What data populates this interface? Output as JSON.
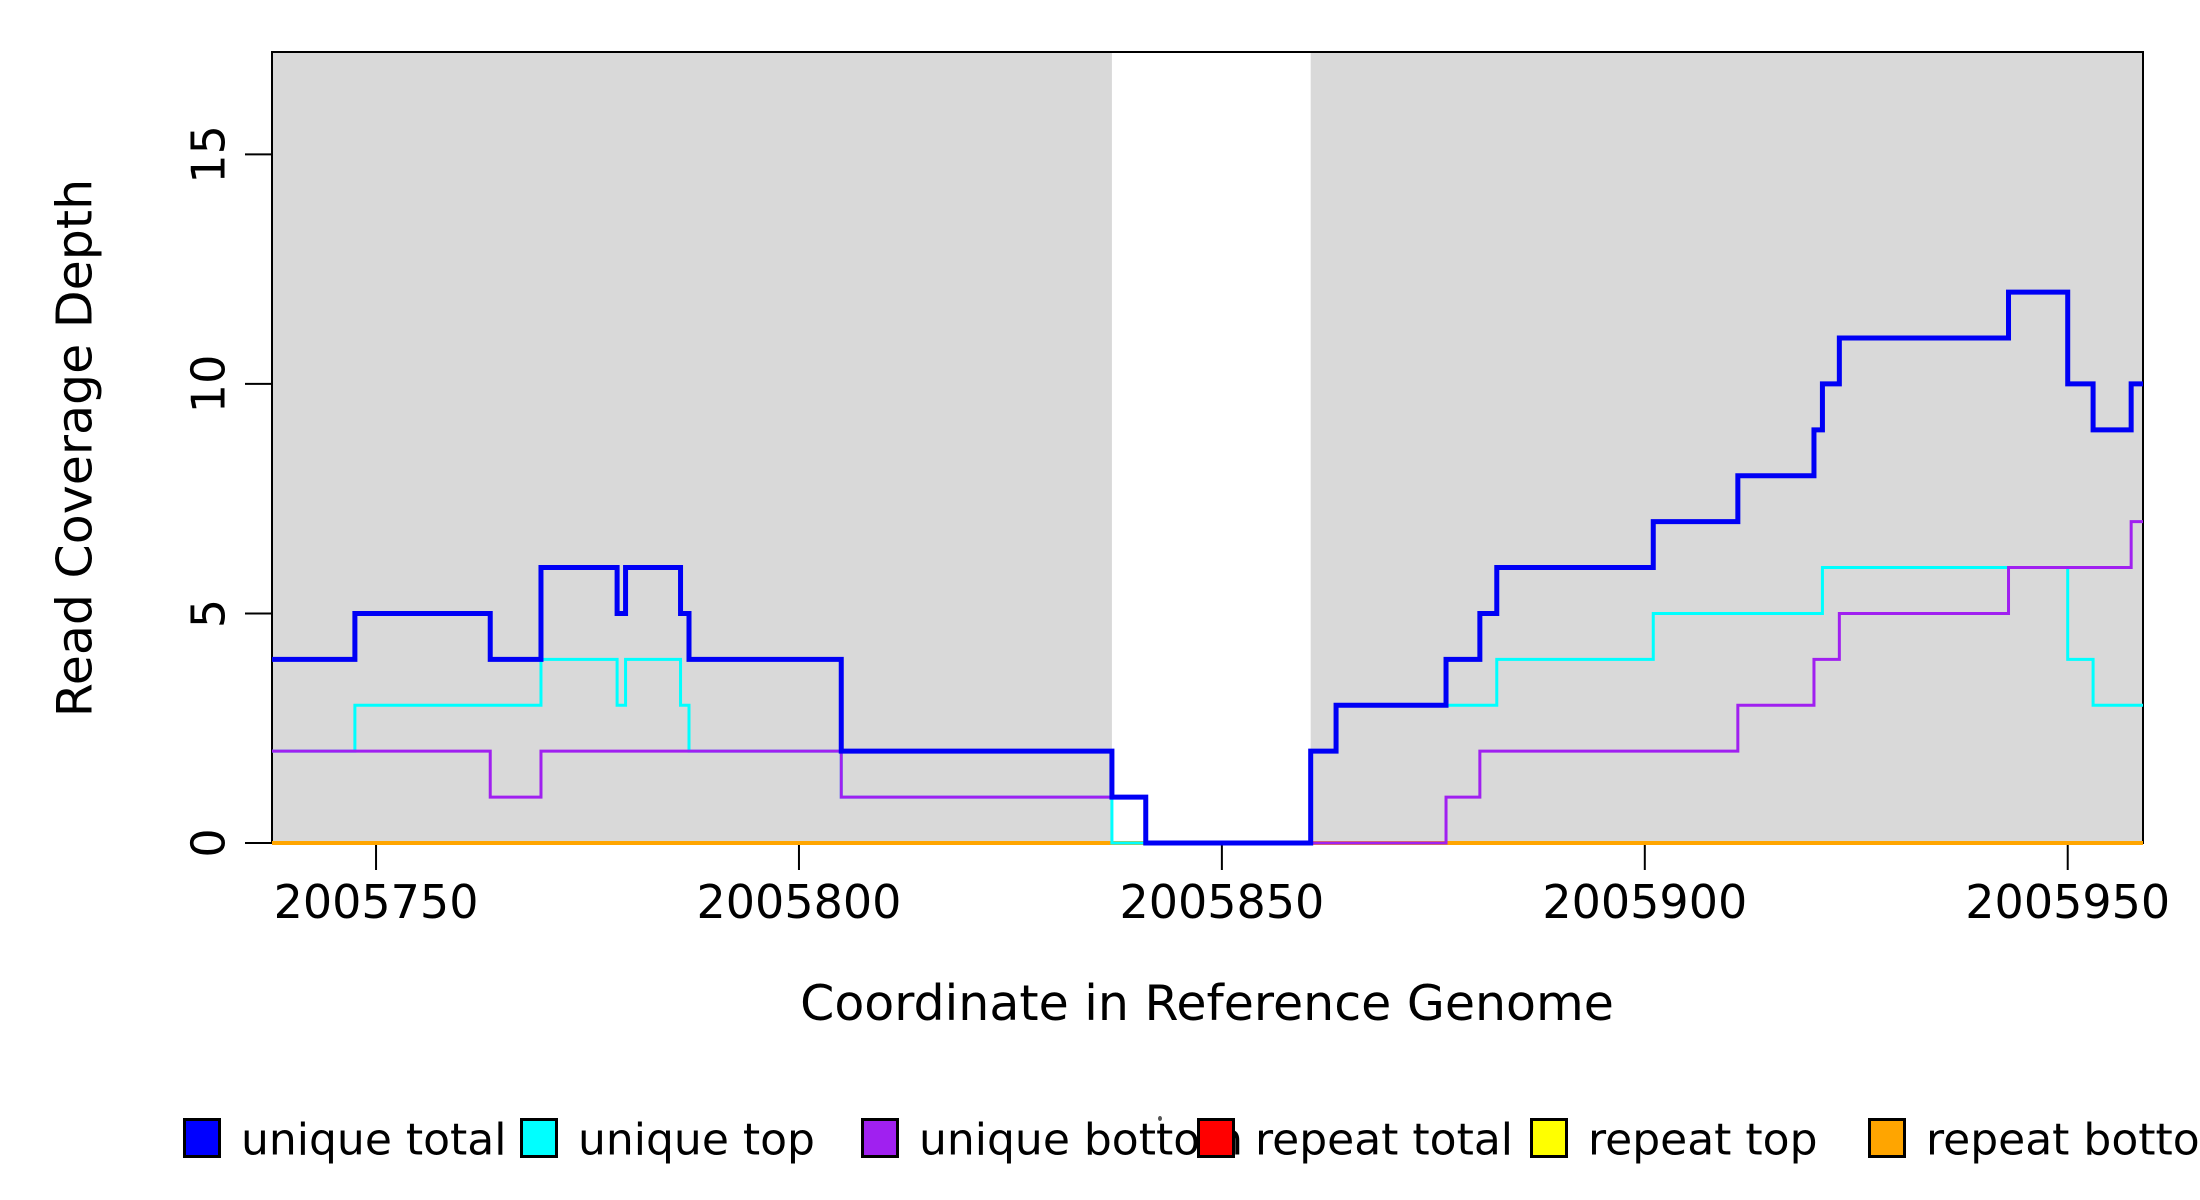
{
  "chart_data": {
    "type": "line",
    "subtype": "step-coverage-plot",
    "title": "",
    "xlabel": "Coordinate in Reference Genome",
    "ylabel": "Read Coverage Depth",
    "xlim": [
      2005737.7,
      2005958.9
    ],
    "ylim": [
      0,
      17.23
    ],
    "grid": false,
    "x_ticks": [
      2005750,
      2005800,
      2005850,
      2005900,
      2005950
    ],
    "x_tick_labels": [
      "2005750",
      "2005800",
      "2005850",
      "2005900",
      "2005950"
    ],
    "y_ticks": [
      0,
      5,
      10,
      15
    ],
    "y_tick_labels": [
      "0",
      "5",
      "10",
      "15"
    ],
    "plot_background": "#ffffff",
    "shade_color": "#d9d9d9",
    "shaded_regions": [
      [
        2005737.7,
        2005837.0
      ],
      [
        2005860.5,
        2005958.9
      ]
    ],
    "series": [
      {
        "name": "repeat total",
        "color": "#ff0000",
        "width": 3,
        "steps": [
          [
            2005737.7,
            0
          ]
        ]
      },
      {
        "name": "repeat top",
        "color": "#ffff00",
        "width": 3,
        "steps": [
          [
            2005737.7,
            0
          ]
        ]
      },
      {
        "name": "repeat bottom",
        "color": "#ffa500",
        "width": 4,
        "steps": [
          [
            2005737.7,
            0
          ]
        ]
      },
      {
        "name": "unique top",
        "color": "#00ffff",
        "width": 3,
        "steps": [
          [
            2005737.7,
            2
          ],
          [
            2005747.5,
            3
          ],
          [
            2005769.5,
            4
          ],
          [
            2005778.5,
            3
          ],
          [
            2005779.5,
            4
          ],
          [
            2005786,
            3
          ],
          [
            2005787,
            2
          ],
          [
            2005805,
            1
          ],
          [
            2005837,
            0
          ],
          [
            2005860.5,
            2
          ],
          [
            2005863.5,
            3
          ],
          [
            2005882.5,
            4
          ],
          [
            2005901,
            5
          ],
          [
            2005921,
            6
          ],
          [
            2005950,
            4
          ],
          [
            2005953,
            3
          ]
        ]
      },
      {
        "name": "unique bottom",
        "color": "#a020f0",
        "width": 3,
        "steps": [
          [
            2005737.7,
            2
          ],
          [
            2005763.5,
            1
          ],
          [
            2005769.5,
            2
          ],
          [
            2005805,
            1
          ],
          [
            2005841,
            0
          ],
          [
            2005876.5,
            1
          ],
          [
            2005880.5,
            2
          ],
          [
            2005911,
            3
          ],
          [
            2005920,
            4
          ],
          [
            2005923,
            5
          ],
          [
            2005943,
            6
          ],
          [
            2005957.5,
            7
          ]
        ]
      },
      {
        "name": "unique total",
        "color": "#0000f5",
        "width": 5,
        "steps": [
          [
            2005737.7,
            4
          ],
          [
            2005747.5,
            5
          ],
          [
            2005763.5,
            4
          ],
          [
            2005769.5,
            6
          ],
          [
            2005778.5,
            5
          ],
          [
            2005779.5,
            6
          ],
          [
            2005786,
            5
          ],
          [
            2005787,
            4
          ],
          [
            2005805,
            2
          ],
          [
            2005837,
            1
          ],
          [
            2005841,
            0
          ],
          [
            2005860.5,
            2
          ],
          [
            2005863.5,
            3
          ],
          [
            2005876.5,
            4
          ],
          [
            2005880.5,
            5
          ],
          [
            2005882.5,
            6
          ],
          [
            2005901,
            7
          ],
          [
            2005911,
            8
          ],
          [
            2005920,
            9
          ],
          [
            2005921,
            10
          ],
          [
            2005923,
            11
          ],
          [
            2005943,
            12
          ],
          [
            2005950,
            10
          ],
          [
            2005953,
            9
          ],
          [
            2005957.5,
            10
          ]
        ]
      }
    ],
    "legend": [
      {
        "label": "unique total",
        "color": "#0000ff"
      },
      {
        "label": "unique top",
        "color": "#00ffff"
      },
      {
        "label": "unique bottom",
        "color": "#a020f0"
      },
      {
        "label": "repeat total",
        "color": "#ff0000"
      },
      {
        "label": "repeat top",
        "color": "#ffff00"
      },
      {
        "label": "repeat bottom",
        "color": "#ffa500"
      }
    ],
    "legend_position": "bottom"
  }
}
